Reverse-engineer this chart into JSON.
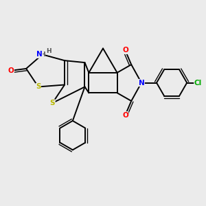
{
  "bg_color": "#ebebeb",
  "atom_colors": {
    "S": "#b8b800",
    "N": "#0000ff",
    "O": "#ff0000",
    "C": "#000000",
    "Cl": "#00aa00"
  },
  "bond_color": "#000000",
  "bond_width": 1.4
}
